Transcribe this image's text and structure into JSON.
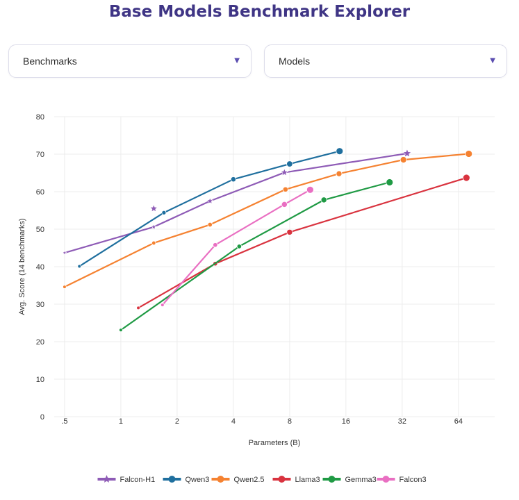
{
  "title": "Base Models Benchmark Explorer",
  "controls": {
    "benchmarks_label": "Benchmarks",
    "models_label": "Models"
  },
  "chart_data": {
    "type": "line",
    "xlabel": "Parameters (B)",
    "ylabel": "Avg. Score (14 benchmarks)",
    "xscale": "log2",
    "xlim": [
      0.44,
      100
    ],
    "ylim": [
      0,
      80
    ],
    "x_ticks": [
      0.5,
      1,
      2,
      4,
      8,
      16,
      32,
      64
    ],
    "x_tick_labels": [
      ".5",
      "1",
      "2",
      "4",
      "8",
      "16",
      "32",
      "64"
    ],
    "y_ticks": [
      0,
      10,
      20,
      30,
      40,
      50,
      60,
      70,
      80
    ],
    "grid": true,
    "legend_position": "bottom",
    "series": [
      {
        "name": "Falcon-H1",
        "color": "#8e5bb6",
        "marker": "star",
        "x": [
          0.5,
          1.5,
          3,
          7.5,
          34
        ],
        "y": [
          43.7,
          50.6,
          57.5,
          65.1,
          70.2
        ],
        "extra_points": [
          {
            "x": 1.5,
            "y": 55.5
          }
        ]
      },
      {
        "name": "Qwen3",
        "color": "#1f6f9e",
        "marker": "circle",
        "x": [
          0.6,
          1.7,
          4,
          8,
          14.8
        ],
        "y": [
          40.1,
          54.4,
          63.3,
          67.4,
          70.8
        ]
      },
      {
        "name": "Qwen2.5",
        "color": "#f58231",
        "marker": "circle",
        "x": [
          0.5,
          1.5,
          3,
          7.6,
          14.7,
          32.5,
          72.7
        ],
        "y": [
          34.6,
          46.3,
          51.2,
          60.6,
          64.8,
          68.5,
          70.1
        ]
      },
      {
        "name": "Llama3",
        "color": "#d9333f",
        "marker": "circle",
        "x": [
          1.24,
          3.2,
          8,
          70.6
        ],
        "y": [
          29,
          40.8,
          49.2,
          63.7
        ]
      },
      {
        "name": "Gemma3",
        "color": "#1f9a44",
        "marker": "circle",
        "x": [
          1,
          4.3,
          12.2,
          27.4
        ],
        "y": [
          23.1,
          45.4,
          57.8,
          62.5
        ]
      },
      {
        "name": "Falcon3",
        "color": "#e96fc2",
        "marker": "circle",
        "x": [
          1.67,
          3.2,
          7.5,
          10.3
        ],
        "y": [
          29.8,
          45.8,
          56.6,
          60.5
        ]
      }
    ]
  }
}
